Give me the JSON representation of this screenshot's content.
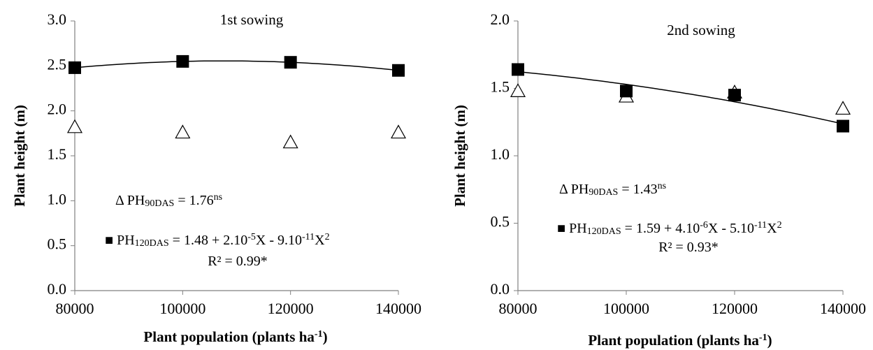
{
  "chart_data": [
    {
      "type": "scatter",
      "title": "1st sowing",
      "x_label": [
        {
          "text": "Plant population (plants ha",
          "style": "normal"
        },
        {
          "text": "-1",
          "style": "sup"
        },
        {
          "text": ")",
          "style": "normal"
        }
      ],
      "y_label": "Plant height (m)",
      "x": [
        80000,
        100000,
        120000,
        140000
      ],
      "xlim": [
        80000,
        140000
      ],
      "xticks": [
        80000,
        100000,
        120000,
        140000
      ],
      "ylim": [
        0,
        3
      ],
      "yticks": [
        {
          "value": 0,
          "label": "0.0"
        },
        0.5,
        {
          "value": 1,
          "label": "1.0"
        },
        1.5,
        {
          "value": 2,
          "label": "2.0"
        },
        2.5,
        {
          "value": 3,
          "label": "3.0"
        }
      ],
      "series": [
        {
          "marker": "triangle",
          "color": "#000000",
          "values": [
            1.82,
            1.76,
            1.65,
            1.76
          ]
        },
        {
          "marker": "square",
          "color": "#000000",
          "trendline": "quadratic",
          "values": [
            2.48,
            2.55,
            2.54,
            2.45
          ]
        }
      ],
      "annotations": [
        [
          {
            "text": "Δ PH",
            "style": "normal"
          },
          {
            "text": "90DAS",
            "style": "sub"
          },
          {
            "text": " = 1.76",
            "style": "normal"
          },
          {
            "text": "ns",
            "style": "sup"
          }
        ],
        [
          {
            "text": "■ PH",
            "style": "normal"
          },
          {
            "text": "120DAS",
            "style": "sub"
          },
          {
            "text": " = 1.48 + 2.10",
            "style": "normal"
          },
          {
            "text": "-5",
            "style": "sup"
          },
          {
            "text": "X - 9.10",
            "style": "normal"
          },
          {
            "text": "-11",
            "style": "sup"
          },
          {
            "text": "X",
            "style": "normal"
          },
          {
            "text": "2",
            "style": "sup"
          }
        ],
        [
          {
            "text": "R² = 0.99*",
            "style": "normal"
          }
        ]
      ]
    },
    {
      "type": "scatter",
      "title": "2nd sowing",
      "x_label": [
        {
          "text": "Plant population (plants ha",
          "style": "normal"
        },
        {
          "text": "-1",
          "style": "sup"
        },
        {
          "text": ")",
          "style": "normal"
        }
      ],
      "y_label": "Plant height (m)",
      "x": [
        80000,
        100000,
        120000,
        140000
      ],
      "xlim": [
        80000,
        140000
      ],
      "xticks": [
        80000,
        100000,
        120000,
        140000
      ],
      "ylim": [
        0,
        2
      ],
      "yticks": [
        {
          "value": 0,
          "label": "0.0"
        },
        0.5,
        {
          "value": 1,
          "label": "1.0"
        },
        1.5,
        {
          "value": 2,
          "label": "2.0"
        }
      ],
      "series": [
        {
          "marker": "triangle",
          "color": "#000000",
          "values": [
            1.48,
            1.44,
            1.47,
            1.35
          ]
        },
        {
          "marker": "square",
          "color": "#000000",
          "trendline": "quadratic",
          "values": [
            1.64,
            1.48,
            1.45,
            1.22
          ]
        }
      ],
      "annotations": [
        [
          {
            "text": "Δ PH",
            "style": "normal"
          },
          {
            "text": "90DAS",
            "style": "sub"
          },
          {
            "text": " = 1.43",
            "style": "normal"
          },
          {
            "text": "ns",
            "style": "sup"
          }
        ],
        [
          {
            "text": "■ PH",
            "style": "normal"
          },
          {
            "text": "120DAS",
            "style": "sub"
          },
          {
            "text": " = 1.59 + 4.10",
            "style": "normal"
          },
          {
            "text": "-6",
            "style": "sup"
          },
          {
            "text": "X - 5.10",
            "style": "normal"
          },
          {
            "text": "-11",
            "style": "sup"
          },
          {
            "text": "X",
            "style": "normal"
          },
          {
            "text": "2",
            "style": "sup"
          }
        ],
        [
          {
            "text": "R² = 0.93*",
            "style": "normal"
          }
        ]
      ]
    }
  ]
}
